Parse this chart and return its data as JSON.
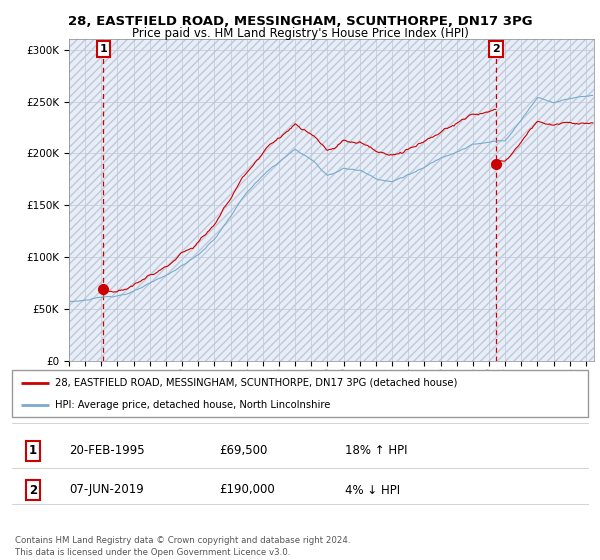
{
  "title": "28, EASTFIELD ROAD, MESSINGHAM, SCUNTHORPE, DN17 3PG",
  "subtitle": "Price paid vs. HM Land Registry's House Price Index (HPI)",
  "sale1_date": "20-FEB-1995",
  "sale1_price": 69500,
  "sale1_pct": "18% ↑ HPI",
  "sale1_label": "1",
  "sale1_year": 1995.12,
  "sale2_date": "07-JUN-2019",
  "sale2_price": 190000,
  "sale2_pct": "4% ↓ HPI",
  "sale2_label": "2",
  "sale2_year": 2019.44,
  "legend_line1": "28, EASTFIELD ROAD, MESSINGHAM, SCUNTHORPE, DN17 3PG (detached house)",
  "legend_line2": "HPI: Average price, detached house, North Lincolnshire",
  "footer": "Contains HM Land Registry data © Crown copyright and database right 2024.\nThis data is licensed under the Open Government Licence v3.0.",
  "line_color_red": "#cc0000",
  "line_color_blue": "#7aabcc",
  "background_color": "#e8eef8",
  "grid_color": "#c0c8d8",
  "ylim": [
    0,
    310000
  ],
  "yticks": [
    0,
    50000,
    100000,
    150000,
    200000,
    250000,
    300000
  ],
  "xlim_start": 1993.0,
  "xlim_end": 2025.5
}
